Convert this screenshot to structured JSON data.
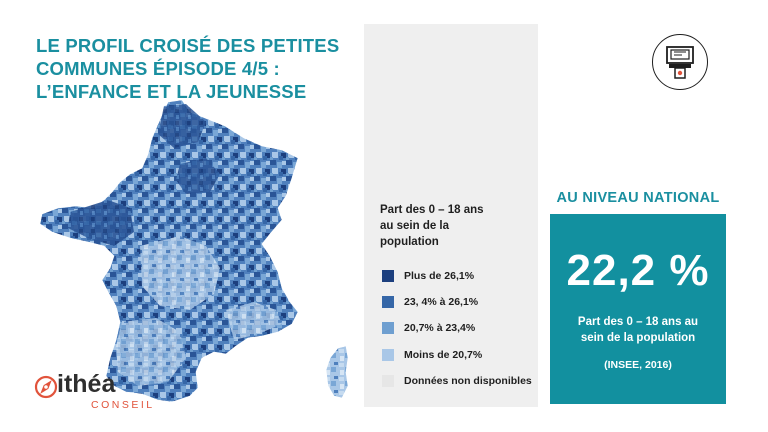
{
  "title": {
    "line1": "LE PROFIL CROISÉ DES PETITES",
    "line2": "COMMUNES ÉPISODE 4/5  :",
    "line3": "L’ENFANCE ET LA JEUNESSE"
  },
  "legend": {
    "title_line1": "Part des 0 – 18 ans",
    "title_line2": "au sein de la",
    "title_line3": "population",
    "items": [
      {
        "label": "Plus de 26,1%",
        "color": "#1c3f7e"
      },
      {
        "label": "23, 4% à 26,1%",
        "color": "#3566a7"
      },
      {
        "label": "20,7% à 23,4%",
        "color": "#6f9fd0"
      },
      {
        "label": "Moins de 20,7%",
        "color": "#a9c7e7"
      },
      {
        "label": "Données non disponibles",
        "color": "#e6e6e6"
      }
    ]
  },
  "national": {
    "label": "AU NIVEAU NATIONAL",
    "value": "22,2 %",
    "desc_line1": "Part des 0 – 18 ans au",
    "desc_line2": "sein de la population",
    "source": "(INSEE, 2016)"
  },
  "logo": {
    "name": "ithéa",
    "sub": "CONSEIL"
  },
  "colors": {
    "accent": "#1a8fa0",
    "box": "#12909f",
    "logo_red": "#e1533b"
  },
  "icons": {
    "theme": "atm-machine-icon",
    "logo": "compass-icon"
  }
}
